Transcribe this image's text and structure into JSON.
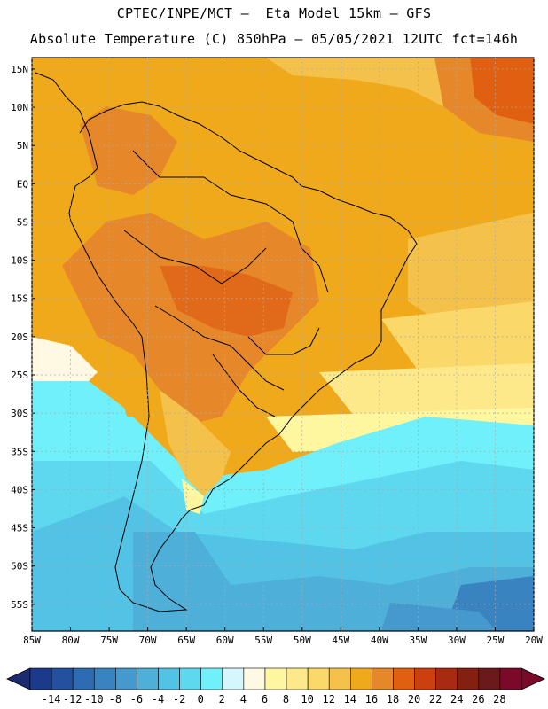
{
  "header": {
    "line1": "CPTEC/INPE/MCT –  Eta Model 15km – GFS",
    "line2": "Absolute Temperature (C) 850hPa – 05/05/2021 12UTC fct=146h"
  },
  "map": {
    "lat_ticks": [
      "15N",
      "10N",
      "5N",
      "EQ",
      "5S",
      "10S",
      "15S",
      "20S",
      "25S",
      "30S",
      "35S",
      "40S",
      "45S",
      "50S",
      "55S"
    ],
    "lon_ticks": [
      "85W",
      "80W",
      "75W",
      "70W",
      "65W",
      "60W",
      "55W",
      "50W",
      "45W",
      "40W",
      "35W",
      "30W",
      "25W",
      "20W"
    ],
    "lat_range": [
      16.5,
      -58.5
    ],
    "lon_range": [
      -85,
      -20
    ],
    "grid_color": "#aaaaaa"
  },
  "colorbar": {
    "labels": [
      "-14",
      "-12",
      "-10",
      "-8",
      "-6",
      "-4",
      "-2",
      "0",
      "2",
      "4",
      "6",
      "8",
      "10",
      "12",
      "14",
      "16",
      "18",
      "20",
      "22",
      "24",
      "26",
      "28"
    ],
    "colors": [
      "#1c3a8c",
      "#2450a0",
      "#2d6bb2",
      "#3a83c1",
      "#4599cc",
      "#4eafd8",
      "#52c3e4",
      "#5ed8ee",
      "#6ff0fb",
      "#d4f6fc",
      "#fff9e4",
      "#fff7a0",
      "#fde98a",
      "#fbd86a",
      "#f4c24a",
      "#f0a91a",
      "#e6882a",
      "#e05f10",
      "#cc4010",
      "#a82a10",
      "#842010",
      "#6a1a18",
      "#7a0a28"
    ],
    "under_color": "#1c2a70",
    "over_color": "#7a0a28"
  }
}
